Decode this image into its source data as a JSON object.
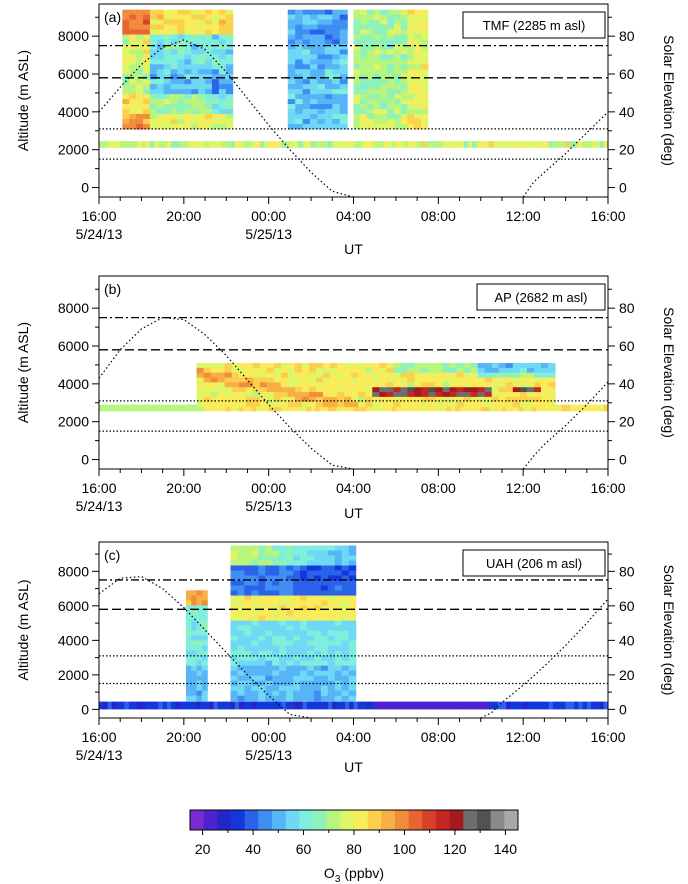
{
  "figure": {
    "colorbar": {
      "label": "O3 (ppbv)",
      "label_main": "O",
      "label_sub": "3",
      "label_unit": "(ppbv)",
      "range": [
        15,
        145
      ],
      "ticks": [
        20,
        40,
        60,
        80,
        100,
        120,
        140
      ],
      "tick_labels": [
        "20",
        "40",
        "60",
        "80",
        "100",
        "120",
        "140"
      ],
      "colors": [
        "#7a2bd0",
        "#4d22cf",
        "#2326c8",
        "#1437dd",
        "#2a63ea",
        "#3f8ff2",
        "#57b5f7",
        "#6fd8f5",
        "#80eedd",
        "#8ff2b6",
        "#b7f57f",
        "#dff566",
        "#f8ec5a",
        "#fbd04d",
        "#f7ae45",
        "#f18c3d",
        "#e86533",
        "#da3f2a",
        "#c42622",
        "#a51a1d",
        "#6e6e6e",
        "#525252",
        "#8a8a8a",
        "#a8a8a8"
      ]
    }
  },
  "chart_data": [
    {
      "type": "heatmap",
      "panel_label": "(a)",
      "site_label": "TMF (2285 m asl)",
      "xlabel": "UT",
      "ylabel": "Altitude (m ASL)",
      "y2label": "Solar Elevation (deg)",
      "xlim": [
        16,
        40
      ],
      "ylim": [
        -500,
        9700
      ],
      "y2lim": [
        -5,
        97
      ],
      "x_ticks": [
        16,
        20,
        24,
        28,
        32,
        36,
        40
      ],
      "x_tick_labels": [
        "16:00",
        "20:00",
        "00:00",
        "04:00",
        "08:00",
        "12:00",
        "16:00"
      ],
      "x_date_labels": [
        {
          "x": 16,
          "text": "5/24/13"
        },
        {
          "x": 24,
          "text": "5/25/13"
        }
      ],
      "y_ticks": [
        0,
        2000,
        4000,
        6000,
        8000
      ],
      "y_tick_labels": [
        "0",
        "2000",
        "4000",
        "6000",
        "8000"
      ],
      "y2_ticks": [
        0,
        20,
        40,
        60,
        80
      ],
      "y2_tick_labels": [
        "0",
        "20",
        "40",
        "60",
        "80"
      ],
      "ref_lines": [
        {
          "y": 7500,
          "style": "dashdot"
        },
        {
          "y": 5800,
          "style": "dashed"
        },
        {
          "y": 3100,
          "style": "dotted"
        },
        {
          "y": 1500,
          "style": "dotted"
        }
      ],
      "surface_strip": {
        "y": [
          2100,
          2450
        ],
        "x_range": [
          16,
          40
        ],
        "level": "orange-yellow (~70-90 ppbv)"
      },
      "profile_blocks": [
        {
          "x": [
            17.1,
            22.3
          ],
          "y": [
            3100,
            9400
          ],
          "level": "mixed 50-90 ppbv, red aloft and near 3-4 km"
        },
        {
          "x": [
            24.9,
            27.7
          ],
          "y": [
            3100,
            9400
          ],
          "level": "cyan-blue 45-65 ppbv"
        },
        {
          "x": [
            28.0,
            31.5
          ],
          "y": [
            3100,
            9400
          ],
          "level": "yellow-orange 60-85 ppbv"
        }
      ],
      "solar_elevation": {
        "x": [
          16,
          17,
          18,
          19,
          20,
          21,
          22,
          23,
          24,
          25,
          26,
          27,
          28,
          32,
          36,
          36.5,
          37,
          38,
          39,
          40
        ],
        "y": [
          40,
          53,
          65,
          74,
          78,
          73,
          61,
          47,
          33,
          20,
          8,
          -2,
          -5,
          -5,
          -5,
          3,
          8,
          18,
          29,
          40
        ]
      }
    },
    {
      "type": "heatmap",
      "panel_label": "(b)",
      "site_label": "AP (2682 m asl)",
      "xlabel": "UT",
      "ylabel": "Altitude (m ASL)",
      "y2label": "Solar Elevation (deg)",
      "xlim": [
        16,
        40
      ],
      "ylim": [
        -500,
        9700
      ],
      "y2lim": [
        -5,
        97
      ],
      "x_ticks": [
        16,
        20,
        24,
        28,
        32,
        36,
        40
      ],
      "x_tick_labels": [
        "16:00",
        "20:00",
        "00:00",
        "04:00",
        "08:00",
        "12:00",
        "16:00"
      ],
      "x_date_labels": [
        {
          "x": 16,
          "text": "5/24/13"
        },
        {
          "x": 24,
          "text": "5/25/13"
        }
      ],
      "y_ticks": [
        0,
        2000,
        4000,
        6000,
        8000
      ],
      "y_tick_labels": [
        "0",
        "2000",
        "4000",
        "6000",
        "8000"
      ],
      "y2_ticks": [
        0,
        20,
        40,
        60,
        80
      ],
      "y2_tick_labels": [
        "0",
        "20",
        "40",
        "60",
        "80"
      ],
      "ref_lines": [
        {
          "y": 7500,
          "style": "dashdot"
        },
        {
          "y": 5800,
          "style": "dashed"
        },
        {
          "y": 3100,
          "style": "dotted"
        },
        {
          "y": 1500,
          "style": "dotted"
        }
      ],
      "surface_strip": {
        "y": [
          2550,
          2900
        ],
        "x_range": [
          16,
          40
        ],
        "level": "yellow-orange (~70-85 ppbv)"
      },
      "profile_blocks": [
        {
          "x": [
            20.6,
            37.5
          ],
          "y": [
            2800,
            5100
          ],
          "level": "red-orange 80-100 ppbv, >100 layers near 3.5 km after 06:00"
        }
      ],
      "solar_elevation": {
        "x": [
          16,
          17,
          18,
          19,
          20,
          21,
          22,
          23,
          24,
          25,
          26,
          27,
          28,
          32,
          36,
          36.5,
          37,
          38,
          39,
          40
        ],
        "y": [
          43,
          58,
          69,
          75,
          74,
          66,
          55,
          42,
          29,
          17,
          6,
          -3,
          -5,
          -5,
          -5,
          2,
          8,
          18,
          29,
          41
        ]
      }
    },
    {
      "type": "heatmap",
      "panel_label": "(c)",
      "site_label": "UAH (206 m asl)",
      "xlabel": "UT",
      "ylabel": "Altitude (m ASL)",
      "y2label": "Solar Elevation (deg)",
      "xlim": [
        16,
        40
      ],
      "ylim": [
        -500,
        9700
      ],
      "y2lim": [
        -5,
        97
      ],
      "x_ticks": [
        16,
        20,
        24,
        28,
        32,
        36,
        40
      ],
      "x_tick_labels": [
        "16:00",
        "20:00",
        "00:00",
        "04:00",
        "08:00",
        "12:00",
        "16:00"
      ],
      "x_date_labels": [
        {
          "x": 16,
          "text": "5/24/13"
        },
        {
          "x": 24,
          "text": "5/25/13"
        }
      ],
      "y_ticks": [
        0,
        2000,
        4000,
        6000,
        8000
      ],
      "y_tick_labels": [
        "0",
        "2000",
        "4000",
        "6000",
        "8000"
      ],
      "y2_ticks": [
        0,
        20,
        40,
        60,
        80
      ],
      "y2_tick_labels": [
        "0",
        "20",
        "40",
        "60",
        "80"
      ],
      "ref_lines": [
        {
          "y": 7500,
          "style": "dashdot"
        },
        {
          "y": 5800,
          "style": "dashed"
        },
        {
          "y": 3100,
          "style": "dotted"
        },
        {
          "y": 1500,
          "style": "dotted"
        }
      ],
      "surface_strip": {
        "y": [
          0,
          450
        ],
        "x_range": [
          16,
          40
        ],
        "level": "blue-violet (~25-50 ppbv)"
      },
      "profile_blocks": [
        {
          "x": [
            20.1,
            21.1
          ],
          "y": [
            500,
            6900
          ],
          "level": "red aloft 6-7 km, green-cyan below"
        },
        {
          "x": [
            22.2,
            28.1
          ],
          "y": [
            500,
            9500
          ],
          "level": "blue above 7 km, orange near 6 km, green-cyan below"
        }
      ],
      "solar_elevation": {
        "x": [
          16,
          17,
          18,
          19,
          20,
          21,
          22,
          23,
          24,
          25,
          26,
          27,
          28,
          34,
          34.5,
          35,
          36,
          37,
          38,
          39,
          40
        ],
        "y": [
          67,
          76,
          77,
          70,
          59,
          46,
          33,
          20,
          8,
          -3,
          -5,
          -5,
          -5,
          -5,
          -2,
          4,
          14,
          25,
          37,
          50,
          64
        ]
      }
    }
  ]
}
